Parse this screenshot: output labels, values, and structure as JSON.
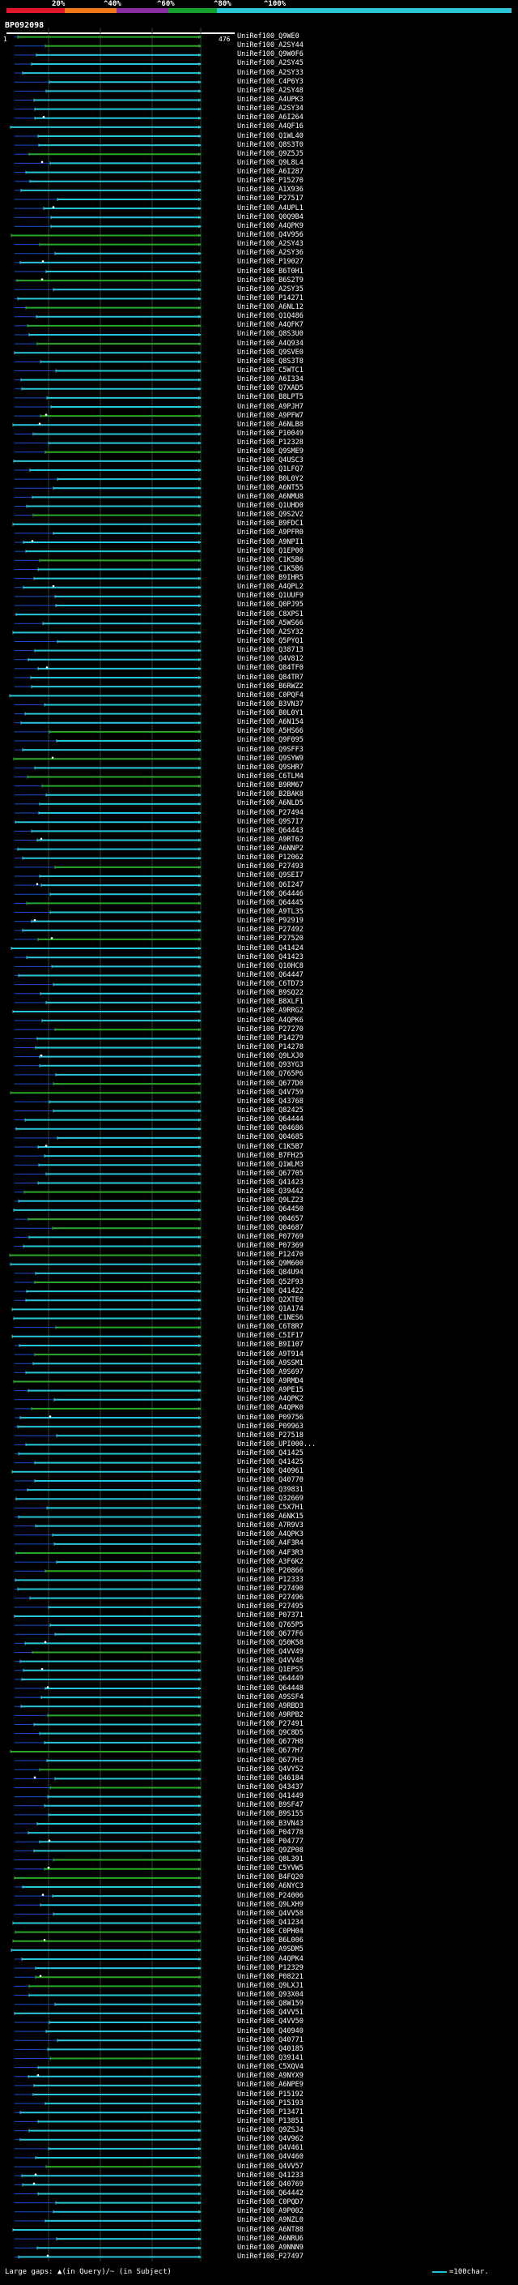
{
  "scale": {
    "colors": [
      "#e2162b",
      "#f07818",
      "#8b2fa0",
      "#14a02c",
      "#2cc6d6"
    ],
    "labels": [
      "20%",
      "^40%",
      "^60%",
      "^80%",
      "^100%"
    ]
  },
  "query": {
    "name": "BP092098",
    "start": "1",
    "end": "476"
  },
  "colors": {
    "high": "#26c6da",
    "mid": "#2aa82a",
    "low": "#1b4fd0",
    "gap": "#ffffff",
    "grid": "#24492c"
  },
  "hits": [
    "UniRef100_Q9WE0",
    "UniRef100_A2SY44",
    "UniRef100_Q9W0F6",
    "UniRef100_A2SY45",
    "UniRef100_A2SY33",
    "UniRef100_C4P6Y3",
    "UniRef100_A2SY48",
    "UniRef100_A4UPK3",
    "UniRef100_A2SY34",
    "UniRef100_A6I264",
    "UniRef100_A4QF16",
    "UniRef100_Q1WL40",
    "UniRef100_Q8S3T0",
    "UniRef100_Q9Z5J5",
    "UniRef100_Q9L8L4",
    "UniRef100_A6I287",
    "UniRef100_P15270",
    "UniRef100_A1X936",
    "UniRef100_P27517",
    "UniRef100_A4UPL1",
    "UniRef100_Q0Q9B4",
    "UniRef100_A4QPK9",
    "UniRef100_Q4V956",
    "UniRef100_A2SY43",
    "UniRef100_A2SY36",
    "UniRef100_P19027",
    "UniRef100_B6T0H1",
    "UniRef100_B6S2T9",
    "UniRef100_A2SY35",
    "UniRef100_P14271",
    "UniRef100_A6NL12",
    "UniRef100_Q1Q486",
    "UniRef100_A4QFK7",
    "UniRef100_Q8S3U0",
    "UniRef100_A4Q934",
    "UniRef100_Q9SVE0",
    "UniRef100_Q8S3T8",
    "UniRef100_C5WTC1",
    "UniRef100_A6I334",
    "UniRef100_Q7XAD5",
    "UniRef100_B8LPT5",
    "UniRef100_A9PJH7",
    "UniRef100_A9PFW7",
    "UniRef100_A6NLB8",
    "UniRef100_P10049",
    "UniRef100_P12328",
    "UniRef100_Q9SME9",
    "UniRef100_Q4USC3",
    "UniRef100_Q1LFQ7",
    "UniRef100_B0L0Y2",
    "UniRef100_A6NT55",
    "UniRef100_A6NMU8",
    "UniRef100_Q1UHD0",
    "UniRef100_Q9S2V2",
    "UniRef100_B9FDC1",
    "UniRef100_A9PFR0",
    "UniRef100_A9NPI1",
    "UniRef100_Q1EP00",
    "UniRef100_C1K5B6",
    "UniRef100_C1K5B6",
    "UniRef100_B9IHR5",
    "UniRef100_A4QPL2",
    "UniRef100_Q1UUF9",
    "UniRef100_Q0PJ95",
    "UniRef100_C8XPS1",
    "UniRef100_A5WS66",
    "UniRef100_A2SY32",
    "UniRef100_Q5PYQ1",
    "UniRef100_Q38713",
    "UniRef100_Q4V812",
    "UniRef100_Q84TF0",
    "UniRef100_Q84TR7",
    "UniRef100_B6RWZ2",
    "UniRef100_C0PQF4",
    "UniRef100_B3VN37",
    "UniRef100_B0L0Y1",
    "UniRef100_A6N154",
    "UniRef100_A5HS66",
    "UniRef100_Q9F095",
    "UniRef100_Q9SFF3",
    "UniRef100_Q9SYW9",
    "UniRef100_Q9SHR7",
    "UniRef100_C6TLM4",
    "UniRef100_B9RM67",
    "UniRef100_B2BAK8",
    "UniRef100_A6NLD5",
    "UniRef100_P27494",
    "UniRef100_Q9S7I7",
    "UniRef100_Q64443",
    "UniRef100_A9RT62",
    "UniRef100_A6NNP2",
    "UniRef100_P12062",
    "UniRef100_P27493",
    "UniRef100_Q9SEI7",
    "UniRef100_Q6I247",
    "UniRef100_Q64446",
    "UniRef100_Q64445",
    "UniRef100_A9TL35",
    "UniRef100_P92919",
    "UniRef100_P27492",
    "UniRef100_P27520",
    "UniRef100_Q41424",
    "UniRef100_Q41423",
    "UniRef100_Q10HC8",
    "UniRef100_Q64447",
    "UniRef100_C6TD73",
    "UniRef100_B9SQ22",
    "UniRef100_B8XLF1",
    "UniRef100_A9RRG2",
    "UniRef100_A4QPK6",
    "UniRef100_P27270",
    "UniRef100_P14279",
    "UniRef100_P14278",
    "UniRef100_Q9LXJ0",
    "UniRef100_Q93YG3",
    "UniRef100_Q765P6",
    "UniRef100_Q677D0",
    "UniRef100_Q4V759",
    "UniRef100_Q43768",
    "UniRef100_Q82425",
    "UniRef100_Q64444",
    "UniRef100_Q04686",
    "UniRef100_Q04685",
    "UniRef100_C1K5B7",
    "UniRef100_B7FH25",
    "UniRef100_Q1WLM3",
    "UniRef100_Q67705",
    "UniRef100_Q41423",
    "UniRef100_Q39442",
    "UniRef100_Q9LZ23",
    "UniRef100_Q64450",
    "UniRef100_Q04657",
    "UniRef100_Q04687",
    "UniRef100_P07769",
    "UniRef100_P07369",
    "UniRef100_P12470",
    "UniRef100_Q9M600",
    "UniRef100_Q84U94",
    "UniRef100_Q52F93",
    "UniRef100_Q41422",
    "UniRef100_Q2XTE0",
    "UniRef100_Q1A174",
    "UniRef100_C1NES6",
    "UniRef100_C6T8R7",
    "UniRef100_C5IF17",
    "UniRef100_B9I107",
    "UniRef100_A9T914",
    "UniRef100_A9SSM1",
    "UniRef100_A9S697",
    "UniRef100_A9RMD4",
    "UniRef100_A9PE15",
    "UniRef100_A4QPK2",
    "UniRef100_A4QPK0",
    "UniRef100_P09756",
    "UniRef100_P09963",
    "UniRef100_P27518",
    "UniRef100_UPI000...",
    "UniRef100_Q41425",
    "UniRef100_Q41425",
    "UniRef100_Q40961",
    "UniRef100_Q40770",
    "UniRef100_Q39831",
    "UniRef100_Q32669",
    "UniRef100_C5X7H1",
    "UniRef100_A6NK15",
    "UniRef100_A7R9V3",
    "UniRef100_A4QPK3",
    "UniRef100_A4F3R4",
    "UniRef100_A4F3R3",
    "UniRef100_A3F6K2",
    "UniRef100_P20866",
    "UniRef100_P12333",
    "UniRef100_P27490",
    "UniRef100_P27496",
    "UniRef100_P27495",
    "UniRef100_P07371",
    "UniRef100_Q765P5",
    "UniRef100_Q677F6",
    "UniRef100_Q50K58",
    "UniRef100_Q4VV49",
    "UniRef100_Q4VV48",
    "UniRef100_Q1EPS5",
    "UniRef100_Q64449",
    "UniRef100_Q64448",
    "UniRef100_A9SSF4",
    "UniRef100_A9RBD3",
    "UniRef100_A9RPB2",
    "UniRef100_P27491",
    "UniRef100_Q9C8D5",
    "UniRef100_Q677H8",
    "UniRef100_Q677H7",
    "UniRef100_Q677H3",
    "UniRef100_Q4VY52",
    "UniRef100_Q46184",
    "UniRef100_Q43437",
    "UniRef100_Q41449",
    "UniRef100_B9SF47",
    "UniRef100_B9S155",
    "UniRef100_B3VN43",
    "UniRef100_P04778",
    "UniRef100_P04777",
    "UniRef100_Q9ZP08",
    "UniRef100_Q8L391",
    "UniRef100_C5YVW5",
    "UniRef100_B4FQ20",
    "UniRef100_A6NYC3",
    "UniRef100_P24006",
    "UniRef100_Q9LXH9",
    "UniRef100_Q4VV58",
    "UniRef100_Q41234",
    "UniRef100_C0PH04",
    "UniRef100_B6L006",
    "UniRef100_A9SDM5",
    "UniRef100_A4QPK4",
    "UniRef100_P12329",
    "UniRef100_P08221",
    "UniRef100_Q9LXJ1",
    "UniRef100_Q93X04",
    "UniRef100_Q8W159",
    "UniRef100_Q4VV51",
    "UniRef100_Q4VV50",
    "UniRef100_Q40940",
    "UniRef100_Q40771",
    "UniRef100_Q40185",
    "UniRef100_Q39141",
    "UniRef100_C5XQV4",
    "UniRef100_A9NYX9",
    "UniRef100_A6NPE9",
    "UniRef100_P15192",
    "UniRef100_P15193",
    "UniRef100_P13471",
    "UniRef100_P13851",
    "UniRef100_Q9ZSJ4",
    "UniRef100_Q4V962",
    "UniRef100_Q4V461",
    "UniRef100_Q4V460",
    "UniRef100_Q4VV57",
    "UniRef100_Q41233",
    "UniRef100_Q40769",
    "UniRef100_Q64442",
    "UniRef100_C0PQD7",
    "UniRef100_A9P002",
    "UniRef100_A9NZL0",
    "UniRef100_A6NT88",
    "UniRef100_A6NRU6",
    "UniRef100_A9NNN9",
    "UniRef100_P27497"
  ],
  "legend": {
    "gaps": "Large gaps: ▲(in Query)/~ (in Subject)",
    "scale": "=100char."
  }
}
